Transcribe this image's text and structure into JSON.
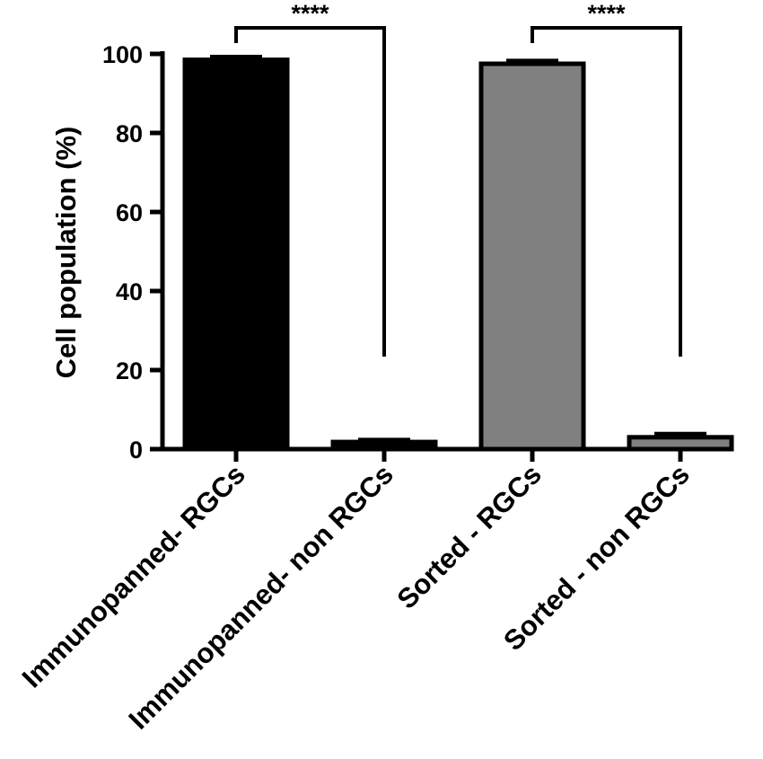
{
  "chart_data": {
    "type": "bar",
    "title": "",
    "xlabel": "",
    "ylabel": "Cell population (%)",
    "ylim": [
      0,
      100
    ],
    "yticks": [
      0,
      20,
      40,
      60,
      80,
      100
    ],
    "grid": false,
    "categories": [
      "Immunopanned- RGCs",
      "Immunopanned- non RGCs",
      "Sorted - RGCs",
      "Sorted - non RGCs"
    ],
    "values": [
      98.5,
      1.8,
      97.5,
      3.0
    ],
    "errors": [
      0.7,
      0.5,
      0.7,
      0.8
    ],
    "bar_colors": [
      "#000000",
      "#000000",
      "#808080",
      "#808080"
    ],
    "edge_color": "#000000",
    "significance": [
      {
        "from": 0,
        "to": 1,
        "label": "****"
      },
      {
        "from": 2,
        "to": 3,
        "label": "****"
      }
    ]
  }
}
